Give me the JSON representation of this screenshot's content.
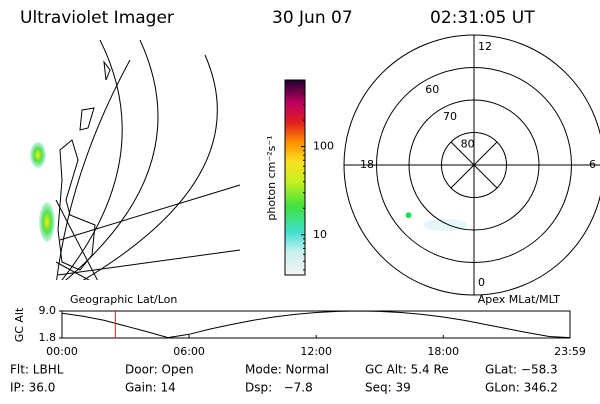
{
  "header": {
    "title": "Ultraviolet Imager",
    "date": "30 Jun 07",
    "time": "02:31:05 UT"
  },
  "chart_data": [
    {
      "type": "colorbar",
      "ylabel": "photon cm⁻²s⁻¹",
      "log_scale": true,
      "ylim": [
        3.5,
        570
      ],
      "yticks": [
        10,
        100
      ]
    },
    {
      "type": "polar",
      "thetaticks": [
        0,
        6,
        12,
        18
      ],
      "rlim": [
        90,
        50
      ],
      "rticks": [
        80,
        70,
        60
      ],
      "points": {
        "color": "#22dd55",
        "mlt": [
          20.5
        ],
        "lat": [
          64.6
        ]
      }
    },
    {
      "type": "line",
      "ylabel": "GC Alt",
      "left_label": "Geographic Lat/Lon",
      "right_label": "Apex MLat/MLT",
      "color": "#000000",
      "marker_color": "#dd2222",
      "marker_x": 2.518,
      "xlim": [
        0,
        23.983
      ],
      "xticks": [
        {
          "value": 0,
          "label": "00:00"
        },
        {
          "value": 6,
          "label": "06:00"
        },
        {
          "value": 12,
          "label": "12:00"
        },
        {
          "value": 18,
          "label": "18:00"
        },
        {
          "value": 23.983,
          "label": "23:59"
        }
      ],
      "ylim": [
        1.8,
        9.0
      ],
      "yticks": [
        1.8,
        {
          "value": 9.0,
          "label": "9.0"
        }
      ],
      "x": [
        0,
        1,
        2,
        3,
        4,
        5,
        6,
        7,
        8,
        9,
        10,
        11,
        12,
        13,
        14,
        15,
        16,
        17,
        18,
        19,
        20,
        21,
        22,
        23,
        23.98
      ],
      "values": [
        8.4,
        7.6,
        6.5,
        5.0,
        3.5,
        1.9,
        2.8,
        4.2,
        5.4,
        6.5,
        7.4,
        8.1,
        8.6,
        8.9,
        9.0,
        8.9,
        8.6,
        8.1,
        7.4,
        6.5,
        5.4,
        4.3,
        3.2,
        2.2,
        1.9
      ]
    }
  ],
  "footer": {
    "row1": [
      "Flt: LBHL",
      "Door: Open",
      "Mode: Normal",
      "GC Alt: 5.4 Re",
      "GLat: −58.3"
    ],
    "row2": [
      "IP: 36.0",
      "Gain: 14",
      "Dsp:   −7.8",
      "Seq: 39",
      "GLon: 346.2"
    ]
  }
}
